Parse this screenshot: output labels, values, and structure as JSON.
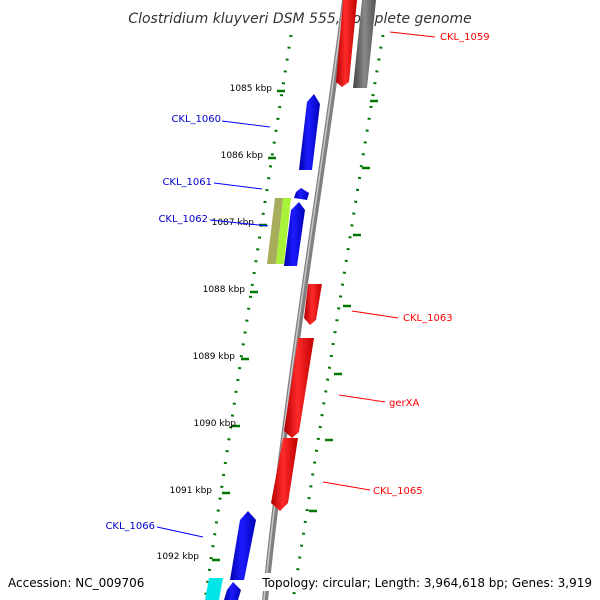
{
  "title": "Clostridium kluyveri DSM 555, complete genome",
  "accession": "Accession: NC_009706",
  "topology": "Topology: circular; Length: 3,964,618 bp; Genes: 3,919",
  "colors": {
    "forward": "#ff0000",
    "reverse": "#0000ff",
    "backbone": "#888888",
    "ticks": "#007700",
    "olive": "#a8ad5c",
    "lime": "#a9f23a",
    "cyan": "#00ffff",
    "gray_gene": "#666666"
  },
  "kbp_labels": [
    "1085 kbp",
    "1086 kbp",
    "1087 kbp",
    "1088 kbp",
    "1089 kbp",
    "1090 kbp",
    "1091 kbp",
    "1092 kbp"
  ],
  "gene_labels": [
    {
      "name": "CKL_1059",
      "strand": "forward"
    },
    {
      "name": "CKL_1060",
      "strand": "reverse"
    },
    {
      "name": "CKL_1061",
      "strand": "reverse"
    },
    {
      "name": "CKL_1062",
      "strand": "reverse"
    },
    {
      "name": "CKL_1063",
      "strand": "forward"
    },
    {
      "name": "gerXA",
      "strand": "forward"
    },
    {
      "name": "CKL_1065",
      "strand": "forward"
    },
    {
      "name": "CKL_1066",
      "strand": "reverse"
    }
  ]
}
